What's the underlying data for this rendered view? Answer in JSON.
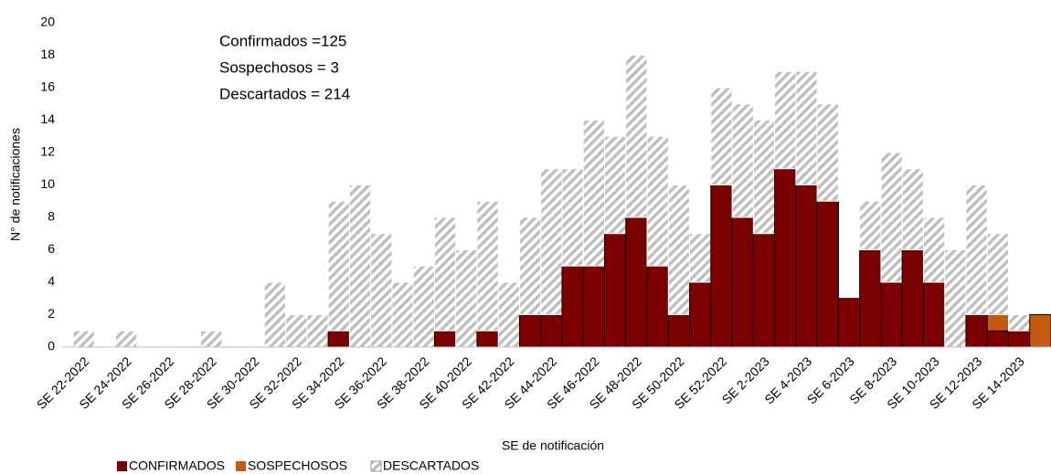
{
  "chart_data": {
    "type": "stacked_bar",
    "annotations": [
      "Confirmados =125",
      "Sospechosos = 3",
      "Descartados = 214"
    ],
    "x_label": "SE de notificación",
    "y_label": "N° de notificaciones",
    "categories": [
      "SE 22-2022",
      null,
      "SE 24-2022",
      null,
      "SE 26-2022",
      null,
      "SE 28-2022",
      null,
      "SE 30-2022",
      null,
      "SE 32-2022",
      null,
      "SE 34-2022",
      null,
      "SE 36-2022",
      null,
      "SE 38-2022",
      null,
      "SE 40-2022",
      null,
      "SE 42-2022",
      null,
      "SE 44-2022",
      null,
      "SE 46-2022",
      null,
      "SE 48-2022",
      null,
      "SE 50-2022",
      null,
      "SE 52-2022",
      null,
      "SE 2-2023",
      null,
      "SE 4-2023",
      null,
      "SE 6-2023",
      null,
      "SE 8-2023",
      null,
      "SE 10-2023",
      null,
      "SE 12-2023",
      null,
      "SE 14-2023",
      null
    ],
    "series": [
      {
        "name": "CONFIRMADOS",
        "color": "#7b0000",
        "values": [
          0,
          0,
          0,
          0,
          0,
          0,
          0,
          0,
          0,
          0,
          0,
          0,
          1,
          0,
          0,
          0,
          0,
          1,
          0,
          1,
          0,
          2,
          2,
          5,
          5,
          7,
          8,
          5,
          2,
          4,
          10,
          8,
          7,
          11,
          10,
          9,
          3,
          6,
          4,
          6,
          4,
          0,
          2,
          1,
          1,
          0
        ]
      },
      {
        "name": "SOSPECHOSOS",
        "color": "#c55a11",
        "values": [
          0,
          0,
          0,
          0,
          0,
          0,
          0,
          0,
          0,
          0,
          0,
          0,
          0,
          0,
          0,
          0,
          0,
          0,
          0,
          0,
          0,
          0,
          0,
          0,
          0,
          0,
          0,
          0,
          0,
          0,
          0,
          0,
          0,
          0,
          0,
          0,
          0,
          0,
          0,
          0,
          0,
          0,
          0,
          1,
          0,
          2
        ]
      },
      {
        "name": "DESCARTADOS",
        "color": "#bfbfbf",
        "pattern": "hatch",
        "values": [
          1,
          0,
          1,
          0,
          0,
          0,
          1,
          0,
          0,
          4,
          2,
          2,
          8,
          10,
          7,
          4,
          5,
          7,
          6,
          8,
          4,
          6,
          9,
          6,
          9,
          6,
          10,
          8,
          8,
          3,
          6,
          7,
          7,
          6,
          7,
          6,
          0,
          3,
          8,
          5,
          4,
          6,
          8,
          5,
          1,
          0
        ]
      }
    ],
    "ylim": [
      0,
      20
    ],
    "yticks": [
      0,
      2,
      4,
      6,
      8,
      10,
      12,
      14,
      16,
      18,
      20
    ],
    "grid": false
  }
}
